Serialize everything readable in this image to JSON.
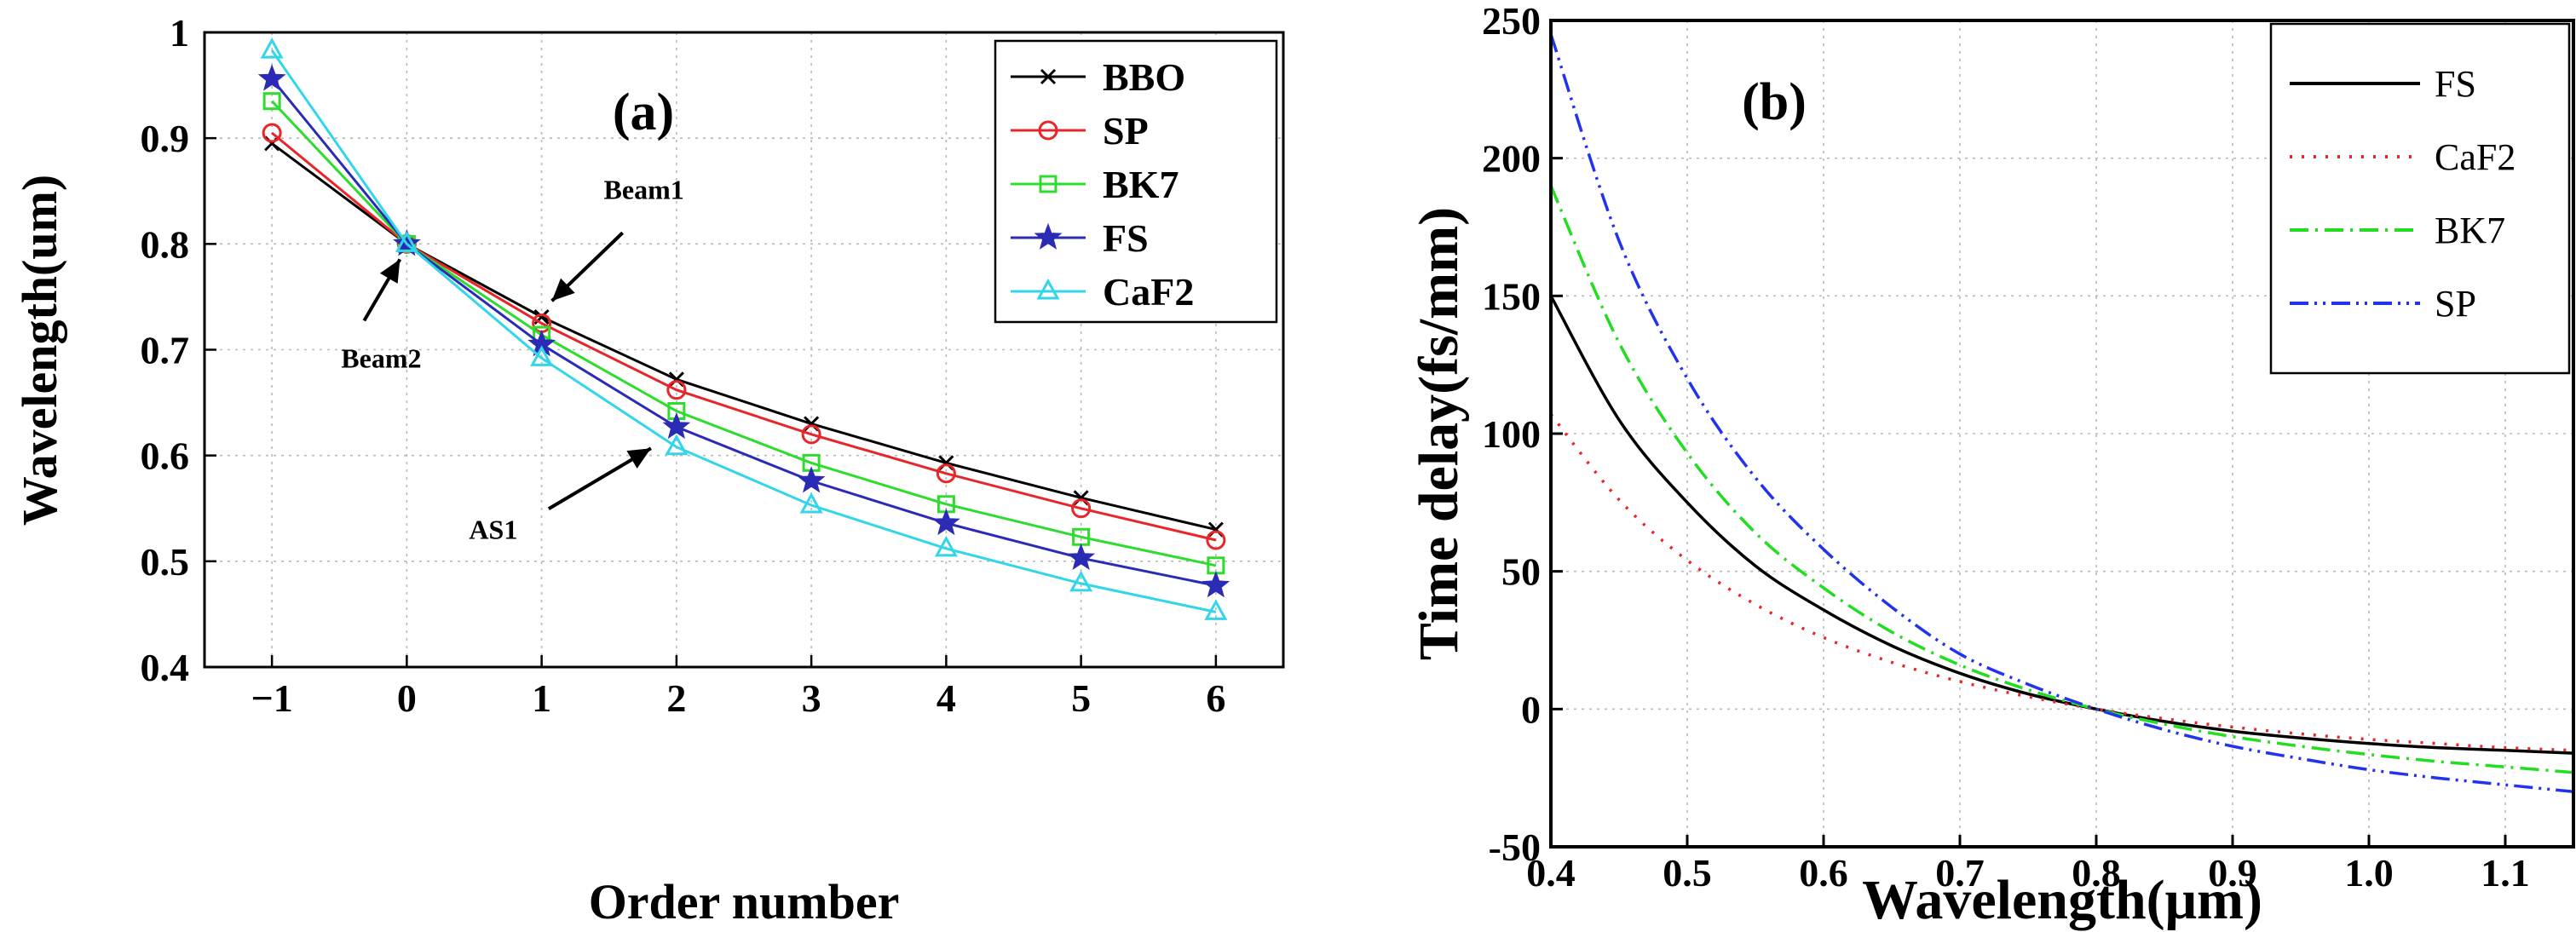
{
  "chart_data": [
    {
      "type": "line",
      "panel_label": "(a)",
      "xlabel": "Order number",
      "ylabel": "Wavelength(um)",
      "xlim": [
        -1.5,
        6.5
      ],
      "ylim": [
        0.4,
        1.0
      ],
      "x_ticks": [
        -1,
        0,
        1,
        2,
        3,
        4,
        5,
        6
      ],
      "x_tick_labels": [
        "−1",
        "0",
        "1",
        "2",
        "3",
        "4",
        "5",
        "6"
      ],
      "y_ticks": [
        0.4,
        0.5,
        0.6,
        0.7,
        0.8,
        0.9,
        1.0
      ],
      "y_tick_labels": [
        "0.4",
        "0.5",
        "0.6",
        "0.7",
        "0.8",
        "0.9",
        "1"
      ],
      "grid": true,
      "legend_position": "top-right",
      "x": [
        -1,
        0,
        1,
        2,
        3,
        4,
        5,
        6
      ],
      "series": [
        {
          "name": "BBO",
          "color": "#000000",
          "marker": "x",
          "values": [
            0.895,
            0.8,
            0.731,
            0.672,
            0.63,
            0.593,
            0.56,
            0.53
          ]
        },
        {
          "name": "SP",
          "color": "#e8262a",
          "marker": "circle",
          "values": [
            0.905,
            0.8,
            0.725,
            0.662,
            0.62,
            0.583,
            0.55,
            0.52
          ]
        },
        {
          "name": "BK7",
          "color": "#2ddc2d",
          "marker": "square",
          "values": [
            0.935,
            0.8,
            0.714,
            0.642,
            0.593,
            0.554,
            0.523,
            0.496
          ]
        },
        {
          "name": "FS",
          "color": "#2b2bb5",
          "marker": "star",
          "values": [
            0.956,
            0.8,
            0.705,
            0.627,
            0.576,
            0.536,
            0.503,
            0.477
          ]
        },
        {
          "name": "CaF2",
          "color": "#33d6e8",
          "marker": "triangle",
          "values": [
            0.983,
            0.8,
            0.692,
            0.608,
            0.553,
            0.512,
            0.479,
            0.452
          ]
        }
      ],
      "annotations": [
        {
          "text": "Beam1",
          "target": [
            1,
            0.73
          ]
        },
        {
          "text": "Beam2",
          "target": [
            0,
            0.8
          ]
        },
        {
          "text": "AS1",
          "target": [
            2,
            0.61
          ]
        }
      ]
    },
    {
      "type": "line",
      "panel_label": "(b)",
      "xlabel": "Wavelength(μm)",
      "ylabel": "Time delay(fs/mm)",
      "xlim": [
        0.4,
        1.15
      ],
      "ylim": [
        -50,
        250
      ],
      "x_ticks": [
        0.4,
        0.5,
        0.6,
        0.7,
        0.8,
        0.9,
        1.0,
        1.1
      ],
      "x_tick_labels": [
        "0.4",
        "0.5",
        "0.6",
        "0.7",
        "0.8",
        "0.9",
        "1.0",
        "1.1"
      ],
      "y_ticks": [
        -50,
        0,
        50,
        100,
        150,
        200,
        250
      ],
      "y_tick_labels": [
        "-50",
        "0",
        "50",
        "100",
        "150",
        "200",
        "250"
      ],
      "grid": true,
      "legend_position": "top-right",
      "x": [
        0.4,
        0.45,
        0.5,
        0.55,
        0.6,
        0.65,
        0.7,
        0.75,
        0.8,
        0.85,
        0.9,
        0.95,
        1.0,
        1.05,
        1.1,
        1.15
      ],
      "series": [
        {
          "name": "FS",
          "color": "#000000",
          "dash": "solid",
          "values": [
            150,
            105,
            75,
            52,
            36,
            23,
            13,
            5.5,
            0,
            -4.5,
            -8,
            -10.5,
            -12.5,
            -14,
            -15,
            -16
          ]
        },
        {
          "name": "CaF2",
          "color": "#e8262a",
          "dash": "dotted",
          "values": [
            107,
            76,
            54,
            38,
            26,
            17,
            10,
            4.5,
            0,
            -3.5,
            -6.5,
            -9,
            -11,
            -12.5,
            -14,
            -15
          ]
        },
        {
          "name": "BK7",
          "color": "#22dd22",
          "dash": "dashdot",
          "values": [
            190,
            133,
            93,
            64,
            44,
            28,
            16,
            7,
            0,
            -5.5,
            -10,
            -13.5,
            -16.5,
            -19,
            -21,
            -23
          ]
        },
        {
          "name": "SP",
          "color": "#2233ee",
          "dash": "dashdotdot",
          "values": [
            245,
            170,
            120,
            84,
            58,
            37,
            20,
            9,
            0,
            -7.5,
            -13.5,
            -18,
            -22,
            -25,
            -27.5,
            -30
          ]
        }
      ]
    }
  ]
}
